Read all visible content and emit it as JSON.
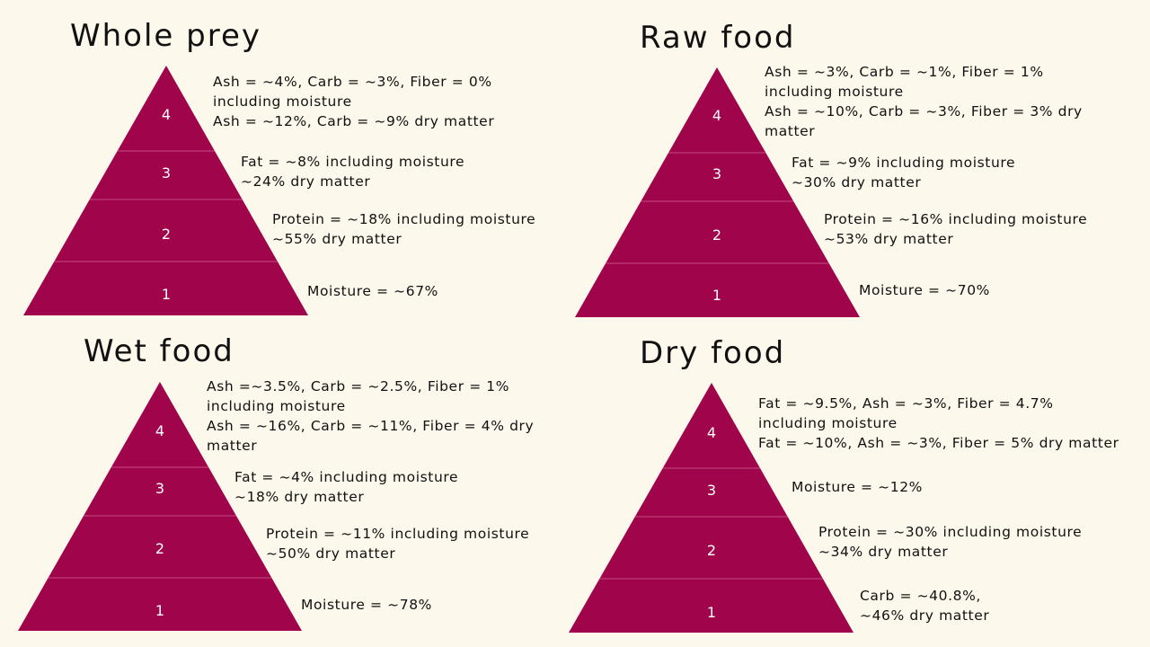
{
  "colors": {
    "background": "#fdf8ec",
    "pyramid": "#a0044a",
    "divider": "#c24b7e",
    "text": "#111111"
  },
  "panels": [
    {
      "title": "Whole prey",
      "tiers": [
        {
          "number": "4",
          "lines": [
            "Ash = ~4%, Carb = ~3%, Fiber = 0%",
            "including moisture",
            "Ash = ~12%, Carb = ~9% dry matter"
          ]
        },
        {
          "number": "3",
          "lines": [
            "Fat = ~8% including moisture",
            "~24% dry matter"
          ]
        },
        {
          "number": "2",
          "lines": [
            "Protein = ~18% including moisture",
            "~55% dry matter"
          ]
        },
        {
          "number": "1",
          "lines": [
            "Moisture = ~67%"
          ]
        }
      ]
    },
    {
      "title": "Raw food",
      "tiers": [
        {
          "number": "4",
          "lines": [
            "Ash = ~3%, Carb = ~1%, Fiber = 1%",
            "including moisture",
            "Ash = ~10%, Carb = ~3%, Fiber = 3% dry",
            "matter"
          ]
        },
        {
          "number": "3",
          "lines": [
            "Fat = ~9% including moisture",
            "~30% dry matter"
          ]
        },
        {
          "number": "2",
          "lines": [
            "Protein = ~16% including moisture",
            "~53% dry matter"
          ]
        },
        {
          "number": "1",
          "lines": [
            "Moisture = ~70%"
          ]
        }
      ]
    },
    {
      "title": "Wet food",
      "tiers": [
        {
          "number": "4",
          "lines": [
            "Ash =~3.5%, Carb = ~2.5%, Fiber = 1%",
            "including moisture",
            "Ash = ~16%, Carb = ~11%, Fiber = 4% dry",
            "matter"
          ]
        },
        {
          "number": "3",
          "lines": [
            "Fat = ~4% including moisture",
            "~18% dry matter"
          ]
        },
        {
          "number": "2",
          "lines": [
            "Protein = ~11% including moisture",
            "~50% dry matter"
          ]
        },
        {
          "number": "1",
          "lines": [
            "Moisture = ~78%"
          ]
        }
      ]
    },
    {
      "title": "Dry food",
      "tiers": [
        {
          "number": "4",
          "lines": [
            "Fat = ~9.5%, Ash = ~3%, Fiber = 4.7%",
            "including moisture",
            "Fat = ~10%, Ash = ~3%, Fiber = 5% dry matter"
          ]
        },
        {
          "number": "3",
          "lines": [
            "Moisture = ~12%"
          ]
        },
        {
          "number": "2",
          "lines": [
            "Protein = ~30% including moisture",
            "~34% dry matter"
          ]
        },
        {
          "number": "1",
          "lines": [
            "Carb = ~40.8%,",
            "~46% dry matter"
          ]
        }
      ]
    }
  ]
}
